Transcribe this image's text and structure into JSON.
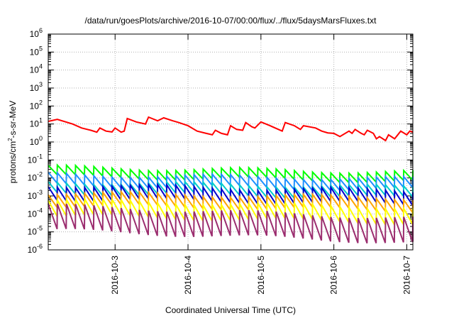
{
  "chart_data": {
    "type": "line",
    "title": "/data/run/goesPlots/archive/2016-10-07/00:00/flux/../flux/5daysMarsFluxes.txt",
    "xlabel": "Coordinated Universal Time (UTC)",
    "ylabel_parts": [
      "protons/cm",
      "2",
      "-s-sr-MeV"
    ],
    "x_range": [
      "2016-10-02T02:00",
      "2016-10-07T02:00"
    ],
    "x_ticks": [
      "2016-10-3",
      "2016-10-4",
      "2016-10-5",
      "2016-10-6",
      "2016-10-7"
    ],
    "y_scale": "log",
    "ylim": [
      1e-06,
      1000000.0
    ],
    "y_tick_exponents": [
      -6,
      -5,
      -4,
      -3,
      -2,
      -1,
      0,
      1,
      2,
      3,
      4,
      5,
      6
    ],
    "y_tick_base": "10",
    "grid": true,
    "sawtooth_period_hours": 3,
    "series": [
      {
        "color": "#ff0000",
        "points": [
          [
            "2016-10-02T02:00",
            14
          ],
          [
            "2016-10-02T05:00",
            18
          ],
          [
            "2016-10-02T10:00",
            10
          ],
          [
            "2016-10-02T13:00",
            6
          ],
          [
            "2016-10-02T16:00",
            4.5
          ],
          [
            "2016-10-02T18:00",
            3.5
          ],
          [
            "2016-10-02T19:00",
            6
          ],
          [
            "2016-10-02T21:00",
            4
          ],
          [
            "2016-10-02T23:00",
            3.6
          ],
          [
            "2016-10-03T00:00",
            6
          ],
          [
            "2016-10-03T02:00",
            3.5
          ],
          [
            "2016-10-03T03:00",
            4
          ],
          [
            "2016-10-03T04:00",
            20
          ],
          [
            "2016-10-03T07:00",
            13
          ],
          [
            "2016-10-03T10:00",
            10
          ],
          [
            "2016-10-03T11:00",
            24
          ],
          [
            "2016-10-03T14:00",
            15
          ],
          [
            "2016-10-03T16:00",
            22
          ],
          [
            "2016-10-03T19:00",
            15
          ],
          [
            "2016-10-03T21:00",
            12
          ],
          [
            "2016-10-04T00:00",
            8
          ],
          [
            "2016-10-04T03:00",
            4
          ],
          [
            "2016-10-04T06:00",
            3
          ],
          [
            "2016-10-04T08:00",
            2.5
          ],
          [
            "2016-10-04T09:00",
            4.5
          ],
          [
            "2016-10-04T11:00",
            3
          ],
          [
            "2016-10-04T13:00",
            2.5
          ],
          [
            "2016-10-04T14:00",
            8
          ],
          [
            "2016-10-04T16:00",
            5
          ],
          [
            "2016-10-04T18:00",
            4.5
          ],
          [
            "2016-10-04T19:00",
            12
          ],
          [
            "2016-10-04T21:00",
            7
          ],
          [
            "2016-10-04T22:00",
            6
          ],
          [
            "2016-10-05T00:00",
            13
          ],
          [
            "2016-10-05T03:00",
            8
          ],
          [
            "2016-10-05T07:00",
            4
          ],
          [
            "2016-10-05T08:00",
            12
          ],
          [
            "2016-10-05T11:00",
            8
          ],
          [
            "2016-10-05T13:00",
            5
          ],
          [
            "2016-10-05T14:00",
            8
          ],
          [
            "2016-10-05T18:00",
            6
          ],
          [
            "2016-10-05T20:00",
            4
          ],
          [
            "2016-10-05T22:00",
            3.2
          ],
          [
            "2016-10-06T00:00",
            3
          ],
          [
            "2016-10-06T02:00",
            2
          ],
          [
            "2016-10-06T05:00",
            4
          ],
          [
            "2016-10-06T06:00",
            3
          ],
          [
            "2016-10-06T07:00",
            5
          ],
          [
            "2016-10-06T09:00",
            3
          ],
          [
            "2016-10-06T10:00",
            2.5
          ],
          [
            "2016-10-06T11:00",
            4.5
          ],
          [
            "2016-10-06T13:00",
            3
          ],
          [
            "2016-10-06T14:00",
            1.5
          ],
          [
            "2016-10-06T15:00",
            2
          ],
          [
            "2016-10-06T17:00",
            1.2
          ],
          [
            "2016-10-06T18:00",
            2.5
          ],
          [
            "2016-10-06T20:00",
            1.5
          ],
          [
            "2016-10-06T22:00",
            4
          ],
          [
            "2016-10-07T00:00",
            2.5
          ],
          [
            "2016-10-07T01:00",
            4
          ],
          [
            "2016-10-07T02:00",
            3.5
          ]
        ]
      },
      {
        "color": "#00ff00",
        "base": 0.04,
        "low": 0.012,
        "end": 0.014
      },
      {
        "color": "#1e90ff",
        "base": 0.016,
        "low": 0.004,
        "end": 0.006
      },
      {
        "color": "#00cccc",
        "base": 0.006,
        "low": 0.0015,
        "end": 0.002
      },
      {
        "color": "#0000cd",
        "base": 0.004,
        "low": 0.0007,
        "end": 0.0012
      },
      {
        "color": "#ffa500",
        "base": 0.0015,
        "low": 0.0003,
        "end": 0.0005
      },
      {
        "color": "#ffff00",
        "base": 0.0006,
        "low": 8e-05,
        "end": 0.00012
      },
      {
        "color": "#9b2d6f",
        "base": 0.0003,
        "low": 1.2e-05,
        "end": 2e-05
      }
    ]
  }
}
